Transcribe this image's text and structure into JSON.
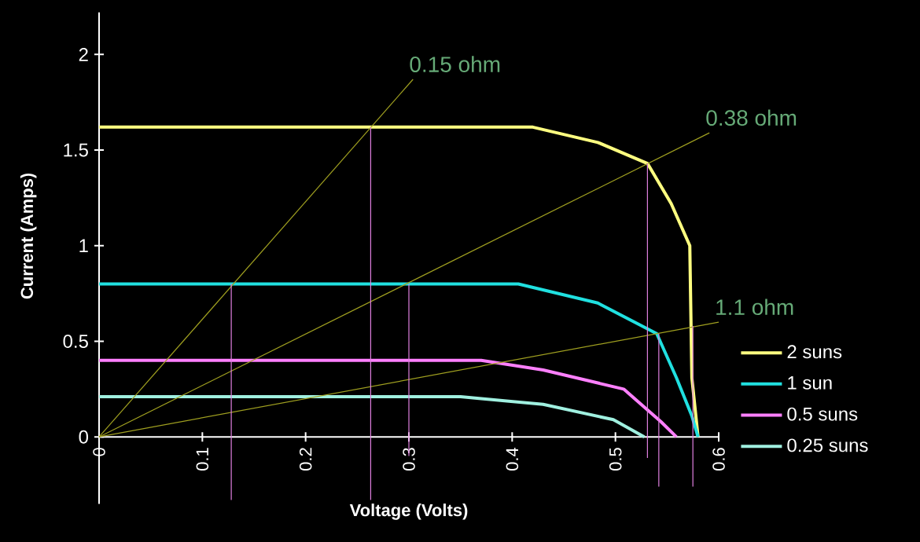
{
  "chart_data": {
    "type": "line",
    "xlabel": "Voltage (Volts)",
    "ylabel": "Current (Amps)",
    "xlim": [
      0,
      0.6
    ],
    "ylim": [
      -0.35,
      2.22
    ],
    "xticks": [
      0,
      0.1,
      0.2,
      0.3,
      0.4,
      0.5,
      0.6
    ],
    "yticks": [
      0,
      0.5,
      1,
      1.5,
      2
    ],
    "grid": false,
    "legend": "right",
    "marker": "none",
    "line_style": "solid",
    "series": [
      {
        "name": "2 suns",
        "color": "#ffff80",
        "x": [
          0,
          0.42,
          0.483,
          0.531,
          0.554,
          0.572,
          0.574,
          0.58
        ],
        "values": [
          1.62,
          1.62,
          1.54,
          1.43,
          1.22,
          1.0,
          0.31,
          0
        ]
      },
      {
        "name": "1 sun",
        "color": "#20e0e0",
        "x": [
          0,
          0.406,
          0.483,
          0.54,
          0.559,
          0.574,
          0.58
        ],
        "values": [
          0.8,
          0.8,
          0.7,
          0.54,
          0.31,
          0.11,
          0
        ]
      },
      {
        "name": "0.5 suns",
        "color": "#ff80ff",
        "x": [
          0,
          0.37,
          0.43,
          0.508,
          0.544,
          0.559
        ],
        "values": [
          0.4,
          0.4,
          0.35,
          0.25,
          0.08,
          0
        ]
      },
      {
        "name": "0.25 suns",
        "color": "#a0f0e0",
        "x": [
          0,
          0.35,
          0.43,
          0.498,
          0.528
        ],
        "values": [
          0.21,
          0.21,
          0.17,
          0.09,
          0
        ]
      },
      {
        "color": "#a0a020",
        "x": [
          0,
          0.304
        ],
        "values": [
          0,
          1.87
        ]
      },
      {
        "color": "#a0a020",
        "x": [
          0,
          0.591
        ],
        "values": [
          0,
          1.59
        ]
      },
      {
        "color": "#a0a020",
        "x": [
          0,
          0.6
        ],
        "values": [
          0,
          0.6
        ]
      },
      {
        "color": "#e080e0",
        "x": [
          0.128,
          0.128
        ],
        "values": [
          -0.33,
          0.8
        ]
      },
      {
        "color": "#e080e0",
        "x": [
          0.263,
          0.263
        ],
        "values": [
          -0.33,
          1.62
        ]
      },
      {
        "color": "#e080e0",
        "x": [
          0.3,
          0.3
        ],
        "values": [
          -0.1,
          0.8
        ]
      },
      {
        "color": "#e080e0",
        "x": [
          0.531,
          0.531
        ],
        "values": [
          -0.11,
          1.43
        ]
      },
      {
        "color": "#e080e0",
        "x": [
          0.542,
          0.542
        ],
        "values": [
          -0.26,
          0.54
        ]
      },
      {
        "color": "#e080e0",
        "x": [
          0.575,
          0.575
        ],
        "values": [
          -0.26,
          0.58
        ]
      }
    ],
    "annotations": [
      {
        "text": "0.15 ohm",
        "x": 0.304,
        "y": 1.87
      },
      {
        "text": "0.38 ohm",
        "x": 0.591,
        "y": 1.59
      },
      {
        "text": "1.1 ohm",
        "x": 0.6,
        "y": 0.6
      }
    ]
  }
}
